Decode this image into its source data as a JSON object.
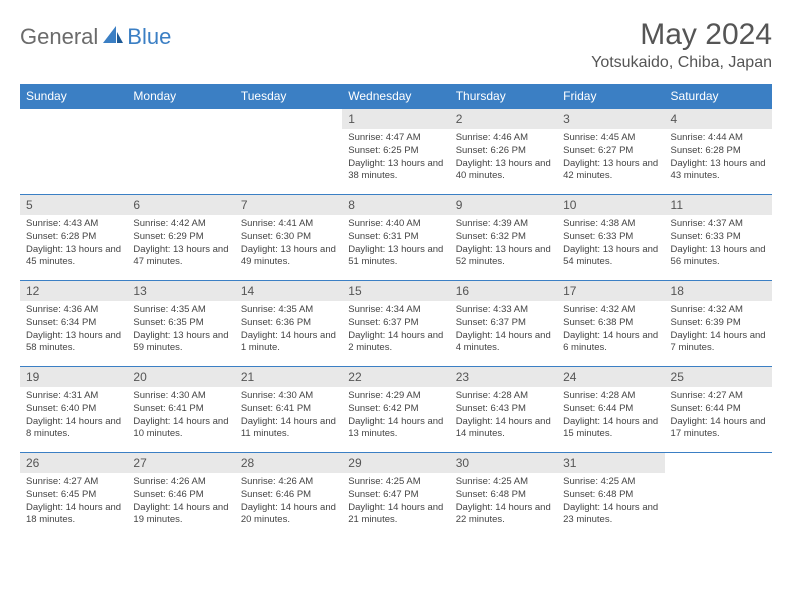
{
  "logo": {
    "textGeneral": "General",
    "textBlue": "Blue"
  },
  "title": "May 2024",
  "location": "Yotsukaido, Chiba, Japan",
  "colors": {
    "headerBar": "#3b7fc4",
    "dayStrip": "#e8e8e8",
    "background": "#ffffff",
    "text": "#444444"
  },
  "weekdays": [
    "Sunday",
    "Monday",
    "Tuesday",
    "Wednesday",
    "Thursday",
    "Friday",
    "Saturday"
  ],
  "weeks": [
    [
      {
        "n": "",
        "sr": "",
        "ss": "",
        "dl": ""
      },
      {
        "n": "",
        "sr": "",
        "ss": "",
        "dl": ""
      },
      {
        "n": "",
        "sr": "",
        "ss": "",
        "dl": ""
      },
      {
        "n": "1",
        "sr": "Sunrise: 4:47 AM",
        "ss": "Sunset: 6:25 PM",
        "dl": "Daylight: 13 hours and 38 minutes."
      },
      {
        "n": "2",
        "sr": "Sunrise: 4:46 AM",
        "ss": "Sunset: 6:26 PM",
        "dl": "Daylight: 13 hours and 40 minutes."
      },
      {
        "n": "3",
        "sr": "Sunrise: 4:45 AM",
        "ss": "Sunset: 6:27 PM",
        "dl": "Daylight: 13 hours and 42 minutes."
      },
      {
        "n": "4",
        "sr": "Sunrise: 4:44 AM",
        "ss": "Sunset: 6:28 PM",
        "dl": "Daylight: 13 hours and 43 minutes."
      }
    ],
    [
      {
        "n": "5",
        "sr": "Sunrise: 4:43 AM",
        "ss": "Sunset: 6:28 PM",
        "dl": "Daylight: 13 hours and 45 minutes."
      },
      {
        "n": "6",
        "sr": "Sunrise: 4:42 AM",
        "ss": "Sunset: 6:29 PM",
        "dl": "Daylight: 13 hours and 47 minutes."
      },
      {
        "n": "7",
        "sr": "Sunrise: 4:41 AM",
        "ss": "Sunset: 6:30 PM",
        "dl": "Daylight: 13 hours and 49 minutes."
      },
      {
        "n": "8",
        "sr": "Sunrise: 4:40 AM",
        "ss": "Sunset: 6:31 PM",
        "dl": "Daylight: 13 hours and 51 minutes."
      },
      {
        "n": "9",
        "sr": "Sunrise: 4:39 AM",
        "ss": "Sunset: 6:32 PM",
        "dl": "Daylight: 13 hours and 52 minutes."
      },
      {
        "n": "10",
        "sr": "Sunrise: 4:38 AM",
        "ss": "Sunset: 6:33 PM",
        "dl": "Daylight: 13 hours and 54 minutes."
      },
      {
        "n": "11",
        "sr": "Sunrise: 4:37 AM",
        "ss": "Sunset: 6:33 PM",
        "dl": "Daylight: 13 hours and 56 minutes."
      }
    ],
    [
      {
        "n": "12",
        "sr": "Sunrise: 4:36 AM",
        "ss": "Sunset: 6:34 PM",
        "dl": "Daylight: 13 hours and 58 minutes."
      },
      {
        "n": "13",
        "sr": "Sunrise: 4:35 AM",
        "ss": "Sunset: 6:35 PM",
        "dl": "Daylight: 13 hours and 59 minutes."
      },
      {
        "n": "14",
        "sr": "Sunrise: 4:35 AM",
        "ss": "Sunset: 6:36 PM",
        "dl": "Daylight: 14 hours and 1 minute."
      },
      {
        "n": "15",
        "sr": "Sunrise: 4:34 AM",
        "ss": "Sunset: 6:37 PM",
        "dl": "Daylight: 14 hours and 2 minutes."
      },
      {
        "n": "16",
        "sr": "Sunrise: 4:33 AM",
        "ss": "Sunset: 6:37 PM",
        "dl": "Daylight: 14 hours and 4 minutes."
      },
      {
        "n": "17",
        "sr": "Sunrise: 4:32 AM",
        "ss": "Sunset: 6:38 PM",
        "dl": "Daylight: 14 hours and 6 minutes."
      },
      {
        "n": "18",
        "sr": "Sunrise: 4:32 AM",
        "ss": "Sunset: 6:39 PM",
        "dl": "Daylight: 14 hours and 7 minutes."
      }
    ],
    [
      {
        "n": "19",
        "sr": "Sunrise: 4:31 AM",
        "ss": "Sunset: 6:40 PM",
        "dl": "Daylight: 14 hours and 8 minutes."
      },
      {
        "n": "20",
        "sr": "Sunrise: 4:30 AM",
        "ss": "Sunset: 6:41 PM",
        "dl": "Daylight: 14 hours and 10 minutes."
      },
      {
        "n": "21",
        "sr": "Sunrise: 4:30 AM",
        "ss": "Sunset: 6:41 PM",
        "dl": "Daylight: 14 hours and 11 minutes."
      },
      {
        "n": "22",
        "sr": "Sunrise: 4:29 AM",
        "ss": "Sunset: 6:42 PM",
        "dl": "Daylight: 14 hours and 13 minutes."
      },
      {
        "n": "23",
        "sr": "Sunrise: 4:28 AM",
        "ss": "Sunset: 6:43 PM",
        "dl": "Daylight: 14 hours and 14 minutes."
      },
      {
        "n": "24",
        "sr": "Sunrise: 4:28 AM",
        "ss": "Sunset: 6:44 PM",
        "dl": "Daylight: 14 hours and 15 minutes."
      },
      {
        "n": "25",
        "sr": "Sunrise: 4:27 AM",
        "ss": "Sunset: 6:44 PM",
        "dl": "Daylight: 14 hours and 17 minutes."
      }
    ],
    [
      {
        "n": "26",
        "sr": "Sunrise: 4:27 AM",
        "ss": "Sunset: 6:45 PM",
        "dl": "Daylight: 14 hours and 18 minutes."
      },
      {
        "n": "27",
        "sr": "Sunrise: 4:26 AM",
        "ss": "Sunset: 6:46 PM",
        "dl": "Daylight: 14 hours and 19 minutes."
      },
      {
        "n": "28",
        "sr": "Sunrise: 4:26 AM",
        "ss": "Sunset: 6:46 PM",
        "dl": "Daylight: 14 hours and 20 minutes."
      },
      {
        "n": "29",
        "sr": "Sunrise: 4:25 AM",
        "ss": "Sunset: 6:47 PM",
        "dl": "Daylight: 14 hours and 21 minutes."
      },
      {
        "n": "30",
        "sr": "Sunrise: 4:25 AM",
        "ss": "Sunset: 6:48 PM",
        "dl": "Daylight: 14 hours and 22 minutes."
      },
      {
        "n": "31",
        "sr": "Sunrise: 4:25 AM",
        "ss": "Sunset: 6:48 PM",
        "dl": "Daylight: 14 hours and 23 minutes."
      },
      {
        "n": "",
        "sr": "",
        "ss": "",
        "dl": ""
      }
    ]
  ]
}
